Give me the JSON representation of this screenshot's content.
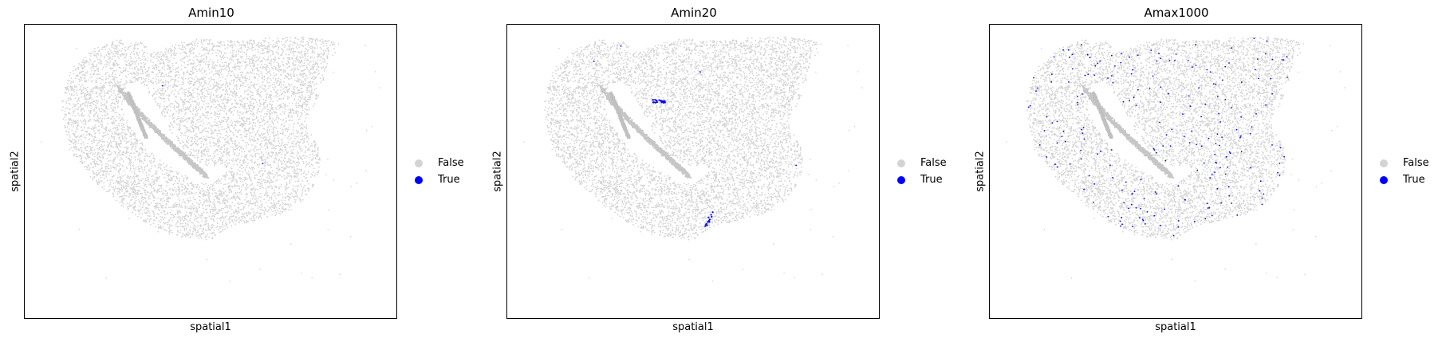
{
  "chart_data": [
    {
      "type": "scatter",
      "title": "Amin10",
      "xlabel": "spatial1",
      "ylabel": "spatial2",
      "legend": [
        "False",
        "True"
      ],
      "legend_position": "right",
      "colors": {
        "False": "#d3d3d3",
        "True": "#0000ff"
      },
      "true_count": 2,
      "true_regions": []
    },
    {
      "type": "scatter",
      "title": "Amin20",
      "xlabel": "spatial1",
      "ylabel": "spatial2",
      "legend": [
        "False",
        "True"
      ],
      "legend_position": "right",
      "colors": {
        "False": "#d3d3d3",
        "True": "#0000ff"
      },
      "true_count": 40,
      "true_regions": [
        "upper-vessel",
        "lower-vessel"
      ]
    },
    {
      "type": "scatter",
      "title": "Amax1000",
      "xlabel": "spatial1",
      "ylabel": "spatial2",
      "legend": [
        "False",
        "True"
      ],
      "legend_position": "right",
      "colors": {
        "False": "#d3d3d3",
        "True": "#0000ff"
      },
      "true_count": 220,
      "true_regions": [
        "scattered"
      ]
    }
  ]
}
